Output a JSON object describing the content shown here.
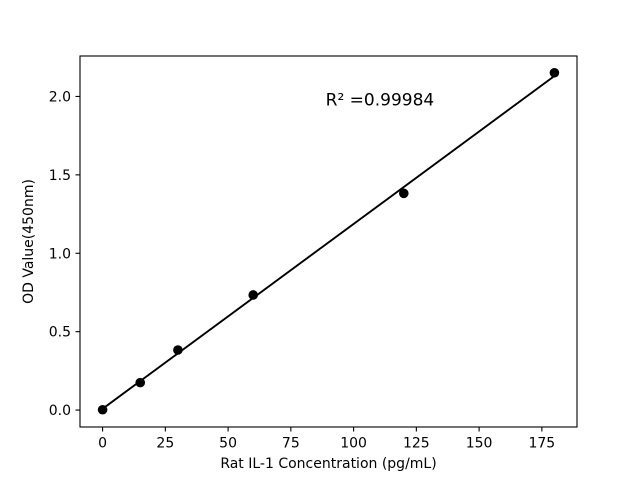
{
  "figure": {
    "background": "#ffffff",
    "foreground": "#000000"
  },
  "chart_data": {
    "type": "scatter",
    "title": "",
    "xlabel": "Rat IL-1 Concentration (pg/mL)",
    "ylabel": "OD Value(450nm)",
    "x": [
      0,
      15,
      30,
      60,
      120,
      180
    ],
    "y": [
      0.002,
      0.175,
      0.383,
      0.734,
      1.382,
      2.151
    ],
    "series": [
      {
        "name": "standards",
        "type": "scatter",
        "marker": "circle",
        "color": "#000000"
      }
    ],
    "fit_line": {
      "type": "linear",
      "slope": 0.01179,
      "intercept": 0.008,
      "x_start": 0,
      "x_end": 180,
      "color": "#000000"
    },
    "r_squared": 0.99984,
    "annotation": {
      "text": "R² =0.99984",
      "x": 110.5,
      "y": 1.98
    },
    "xticks": [
      0,
      25,
      50,
      75,
      100,
      125,
      150,
      175
    ],
    "xtick_labels": [
      "0",
      "25",
      "50",
      "75",
      "100",
      "125",
      "150",
      "175"
    ],
    "yticks": [
      0.0,
      0.5,
      1.0,
      1.5,
      2.0
    ],
    "ytick_labels": [
      "0.0",
      "0.5",
      "1.0",
      "1.5",
      "2.0"
    ],
    "xlim": [
      -9,
      189
    ],
    "ylim": [
      -0.108,
      2.258
    ],
    "grid": false,
    "legend_position": "none",
    "marker_color": "#000000",
    "line_color": "#000000",
    "axis_color": "#000000"
  }
}
